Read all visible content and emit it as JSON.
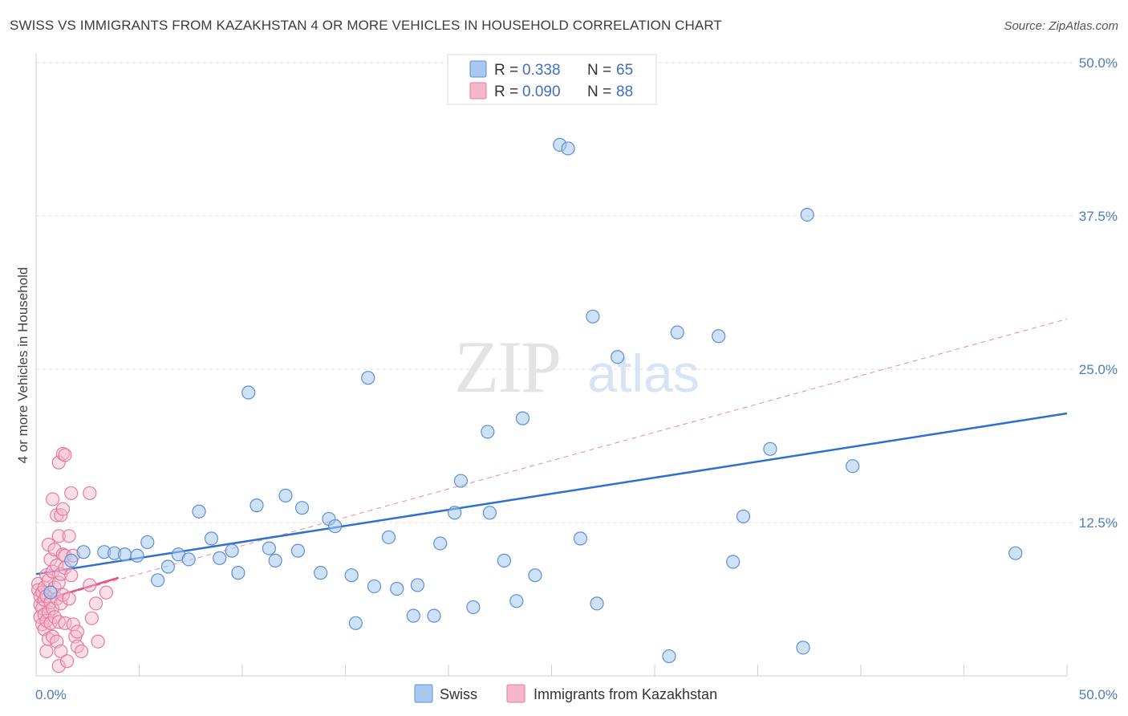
{
  "title": "SWISS VS IMMIGRANTS FROM KAZAKHSTAN 4 OR MORE VEHICLES IN HOUSEHOLD CORRELATION CHART",
  "source": "Source: ZipAtlas.com",
  "watermark": {
    "zip": "ZIP",
    "atlas": "atlas"
  },
  "legend_top": [
    {
      "r_label": "R =",
      "r_value": "0.338",
      "n_label": "N =",
      "n_value": "65"
    },
    {
      "r_label": "R =",
      "r_value": "0.090",
      "n_label": "N =",
      "n_value": "88"
    }
  ],
  "legend_bottom": [
    "Swiss",
    "Immigrants from Kazakhstan"
  ],
  "colors": {
    "swiss_fill": "#a8c8f0",
    "swiss_stroke": "#5b8fd6",
    "swiss_line": "#2f6fcf",
    "kaz_fill": "#f5b8cb",
    "kaz_stroke": "#e8799c",
    "kaz_line": "#e0557f",
    "tick_text": "#4a7cc2",
    "grid": "#dddddd"
  },
  "chart_data": {
    "type": "scatter",
    "ylabel": "4 or more Vehicles in Household",
    "xlim": [
      0,
      50
    ],
    "ylim": [
      0,
      50
    ],
    "x_tick_labels": [
      {
        "v": 0,
        "label": "0.0%"
      },
      {
        "v": 50,
        "label": "50.0%"
      }
    ],
    "y_tick_labels": [
      {
        "v": 12.5,
        "label": "12.5%"
      },
      {
        "v": 25,
        "label": "25.0%"
      },
      {
        "v": 37.5,
        "label": "37.5%"
      },
      {
        "v": 50,
        "label": "50.0%"
      }
    ],
    "grid": true,
    "series": [
      {
        "name": "Swiss",
        "trend": [
          [
            0,
            8.3
          ],
          [
            50,
            21.4
          ]
        ],
        "points": [
          [
            0.7,
            6.8
          ],
          [
            1.7,
            9.4
          ],
          [
            2.3,
            10.1
          ],
          [
            3.3,
            10.1
          ],
          [
            3.8,
            10.0
          ],
          [
            4.3,
            9.9
          ],
          [
            4.9,
            9.8
          ],
          [
            5.4,
            10.9
          ],
          [
            5.9,
            7.8
          ],
          [
            6.4,
            8.9
          ],
          [
            6.9,
            9.9
          ],
          [
            7.4,
            9.5
          ],
          [
            7.9,
            13.4
          ],
          [
            8.5,
            11.2
          ],
          [
            8.9,
            9.6
          ],
          [
            9.5,
            10.2
          ],
          [
            9.8,
            8.4
          ],
          [
            10.3,
            23.1
          ],
          [
            10.7,
            13.9
          ],
          [
            11.3,
            10.4
          ],
          [
            11.6,
            9.4
          ],
          [
            12.1,
            14.7
          ],
          [
            12.7,
            10.2
          ],
          [
            12.9,
            13.7
          ],
          [
            13.8,
            8.4
          ],
          [
            14.2,
            12.8
          ],
          [
            14.5,
            12.2
          ],
          [
            15.3,
            8.2
          ],
          [
            15.5,
            4.3
          ],
          [
            16.1,
            24.3
          ],
          [
            16.4,
            7.3
          ],
          [
            17.1,
            11.3
          ],
          [
            17.5,
            7.1
          ],
          [
            18.3,
            4.9
          ],
          [
            18.5,
            7.4
          ],
          [
            19.3,
            4.9
          ],
          [
            19.6,
            10.8
          ],
          [
            20.3,
            13.3
          ],
          [
            20.6,
            15.9
          ],
          [
            21.2,
            5.6
          ],
          [
            21.9,
            19.9
          ],
          [
            22.0,
            13.3
          ],
          [
            22.7,
            9.4
          ],
          [
            23.3,
            6.1
          ],
          [
            23.6,
            21.0
          ],
          [
            24.2,
            8.2
          ],
          [
            25.4,
            43.3
          ],
          [
            25.8,
            43.0
          ],
          [
            26.4,
            11.2
          ],
          [
            27.0,
            29.3
          ],
          [
            27.2,
            5.9
          ],
          [
            28.2,
            26.0
          ],
          [
            30.7,
            1.6
          ],
          [
            31.1,
            28.0
          ],
          [
            33.1,
            27.7
          ],
          [
            33.8,
            9.3
          ],
          [
            34.3,
            13.0
          ],
          [
            35.6,
            18.5
          ],
          [
            37.2,
            2.3
          ],
          [
            37.4,
            37.6
          ],
          [
            39.6,
            17.1
          ],
          [
            47.5,
            10.0
          ]
        ]
      },
      {
        "name": "Immigrants from Kazakhstan",
        "trend": [
          [
            0,
            6.0
          ],
          [
            4.0,
            8.0
          ]
        ],
        "trend_dashed": [
          [
            0,
            6.0
          ],
          [
            50,
            29.1
          ]
        ],
        "points": [
          [
            0.1,
            7.5
          ],
          [
            0.1,
            7.0
          ],
          [
            0.2,
            6.5
          ],
          [
            0.2,
            5.8
          ],
          [
            0.2,
            4.8
          ],
          [
            0.3,
            6.8
          ],
          [
            0.3,
            5.5
          ],
          [
            0.3,
            4.2
          ],
          [
            0.4,
            7.2
          ],
          [
            0.4,
            6.2
          ],
          [
            0.4,
            5.0
          ],
          [
            0.4,
            3.8
          ],
          [
            0.5,
            8.2
          ],
          [
            0.5,
            6.5
          ],
          [
            0.5,
            4.5
          ],
          [
            0.5,
            2.0
          ],
          [
            0.6,
            10.7
          ],
          [
            0.6,
            7.8
          ],
          [
            0.6,
            5.2
          ],
          [
            0.6,
            3.0
          ],
          [
            0.7,
            9.5
          ],
          [
            0.7,
            6.0
          ],
          [
            0.7,
            4.3
          ],
          [
            0.8,
            14.4
          ],
          [
            0.8,
            8.5
          ],
          [
            0.8,
            5.5
          ],
          [
            0.8,
            3.2
          ],
          [
            0.9,
            10.3
          ],
          [
            0.9,
            7.2
          ],
          [
            0.9,
            4.8
          ],
          [
            1.0,
            13.1
          ],
          [
            1.0,
            9.0
          ],
          [
            1.0,
            6.3
          ],
          [
            1.0,
            2.8
          ],
          [
            1.1,
            17.4
          ],
          [
            1.1,
            11.4
          ],
          [
            1.1,
            7.6
          ],
          [
            1.1,
            4.4
          ],
          [
            1.1,
            0.8
          ],
          [
            1.2,
            13.1
          ],
          [
            1.2,
            8.3
          ],
          [
            1.2,
            5.9
          ],
          [
            1.2,
            2.0
          ],
          [
            1.3,
            18.1
          ],
          [
            1.3,
            13.6
          ],
          [
            1.3,
            9.9
          ],
          [
            1.3,
            6.6
          ],
          [
            1.4,
            18.0
          ],
          [
            1.4,
            9.8
          ],
          [
            1.4,
            8.8
          ],
          [
            1.4,
            4.3
          ],
          [
            1.5,
            1.2
          ],
          [
            1.6,
            11.4
          ],
          [
            1.6,
            6.3
          ],
          [
            1.7,
            14.9
          ],
          [
            1.7,
            8.2
          ],
          [
            1.8,
            9.8
          ],
          [
            1.8,
            4.2
          ],
          [
            1.9,
            3.2
          ],
          [
            2.0,
            3.6
          ],
          [
            2.0,
            2.4
          ],
          [
            2.2,
            2.0
          ],
          [
            2.6,
            14.9
          ],
          [
            2.6,
            7.4
          ],
          [
            2.7,
            4.7
          ],
          [
            2.9,
            5.9
          ],
          [
            3.0,
            2.8
          ],
          [
            3.4,
            6.8
          ]
        ]
      }
    ]
  }
}
